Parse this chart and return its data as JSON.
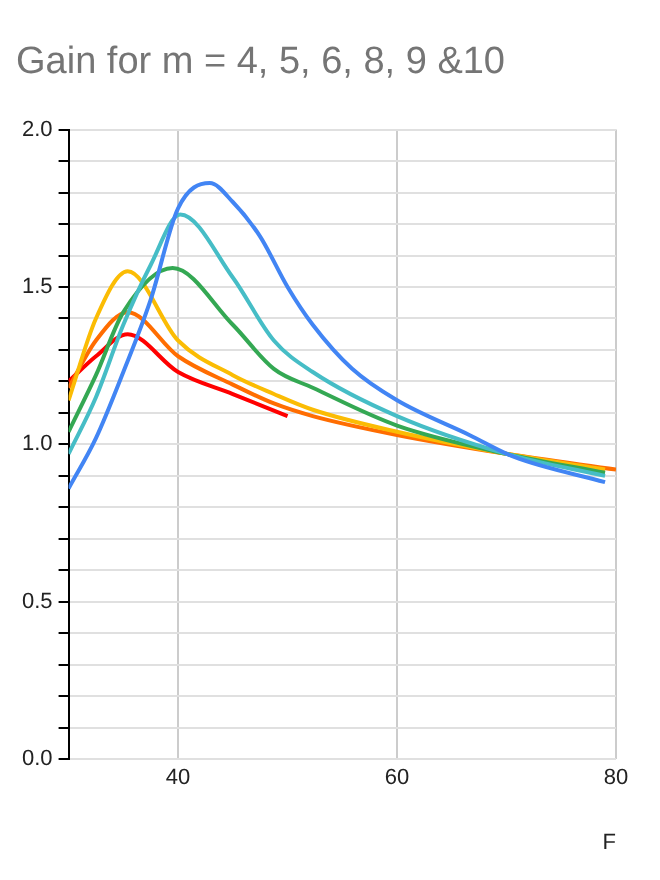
{
  "chart_data": {
    "type": "line",
    "title": "Gain for m = 4, 5, 6, 8, 9 &10",
    "xlabel": "F",
    "xlim": [
      30,
      80
    ],
    "xticks": [
      40,
      60,
      80
    ],
    "ylim": [
      0,
      2
    ],
    "yticks": [
      {
        "value": 0,
        "label": "0.0"
      },
      {
        "value": 0.1,
        "label": null
      },
      {
        "value": 0.2,
        "label": null
      },
      {
        "value": 0.3,
        "label": null
      },
      {
        "value": 0.4,
        "label": null
      },
      0.5,
      {
        "value": 0.6,
        "label": null
      },
      {
        "value": 0.7,
        "label": null
      },
      {
        "value": 0.8,
        "label": null
      },
      {
        "value": 0.9,
        "label": null
      },
      {
        "value": 1,
        "label": "1.0"
      },
      {
        "value": 1.1,
        "label": null
      },
      {
        "value": 1.2,
        "label": null
      },
      {
        "value": 1.3,
        "label": null
      },
      {
        "value": 1.4,
        "label": null
      },
      1.5,
      {
        "value": 1.6,
        "label": null
      },
      {
        "value": 1.7,
        "label": null
      },
      {
        "value": 1.8,
        "label": null
      },
      {
        "value": 1.9,
        "label": null
      },
      {
        "value": 2,
        "label": "2.0"
      }
    ],
    "grid": true,
    "legend": false,
    "marker": "none",
    "line_style": "solid",
    "series": [
      {
        "color": "#4285f4",
        "x": [
          30,
          32.5,
          35,
          37.5,
          40,
          42.9,
          45,
          47.5,
          50,
          52.3,
          55.9,
          60,
          66.6,
          70.7,
          79
        ],
        "values": [
          0.86,
          1.02,
          1.23,
          1.46,
          1.75,
          1.83,
          1.77,
          1.66,
          1.5,
          1.38,
          1.24,
          1.14,
          1.03,
          0.96,
          0.88
        ]
      },
      {
        "color": "#46bdc6",
        "x": [
          30,
          32.5,
          35,
          37.5,
          40.2,
          45,
          48.75,
          52.3,
          60,
          70,
          79
        ],
        "values": [
          0.97,
          1.15,
          1.38,
          1.57,
          1.73,
          1.53,
          1.33,
          1.23,
          1.09,
          0.97,
          0.9
        ]
      },
      {
        "color": "#34a853",
        "x": [
          30,
          32.5,
          35,
          39.5,
          45,
          48.75,
          52.3,
          60,
          70,
          79
        ],
        "values": [
          1.04,
          1.22,
          1.42,
          1.56,
          1.38,
          1.24,
          1.18,
          1.06,
          0.97,
          0.91
        ]
      },
      {
        "color": "#fbbc04",
        "x": [
          30,
          32.5,
          35.4,
          40,
          45,
          48.75,
          52.3,
          60,
          70,
          79
        ],
        "values": [
          1.14,
          1.4,
          1.55,
          1.33,
          1.22,
          1.16,
          1.11,
          1.04,
          0.97,
          0.92
        ]
      },
      {
        "color": "#ff6d01",
        "x": [
          30,
          32.5,
          35.4,
          40,
          45,
          48.75,
          52.3,
          60,
          70,
          80
        ],
        "values": [
          1.18,
          1.33,
          1.42,
          1.28,
          1.19,
          1.13,
          1.09,
          1.03,
          0.97,
          0.92
        ]
      },
      {
        "color": "#ff0000",
        "x": [
          30,
          32.5,
          35.4,
          40,
          45,
          50
        ],
        "values": [
          1.2,
          1.28,
          1.35,
          1.23,
          1.16,
          1.09
        ]
      }
    ]
  }
}
